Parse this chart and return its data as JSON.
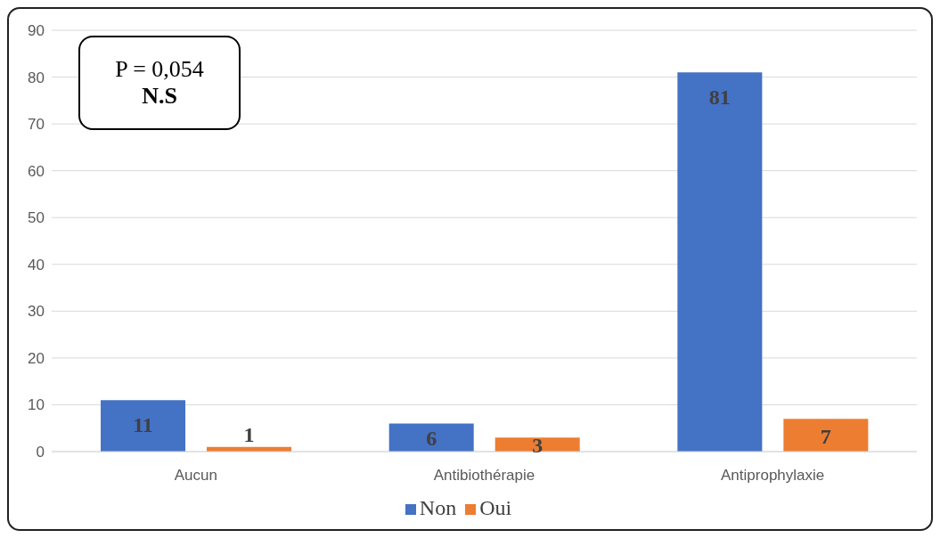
{
  "chart_data": {
    "type": "bar",
    "categories": [
      "Aucun",
      "Antibiothérapie",
      "Antiprophylaxie"
    ],
    "series": [
      {
        "name": "Non",
        "color": "#4472c4",
        "values": [
          11,
          6,
          81
        ]
      },
      {
        "name": "Oui",
        "color": "#ed7d31",
        "values": [
          1,
          3,
          7
        ]
      }
    ],
    "ylim": [
      0,
      90
    ],
    "yticks": [
      0,
      10,
      20,
      30,
      40,
      50,
      60,
      70,
      80,
      90
    ],
    "grid": "y",
    "legend": "bottom",
    "data_labels": true,
    "annotations": [
      "P = 0,054",
      "N.S"
    ]
  }
}
